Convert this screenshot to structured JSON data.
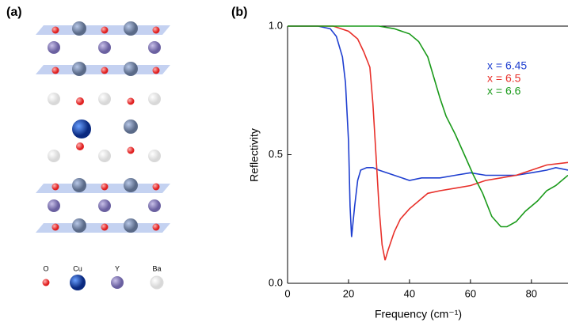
{
  "figure": {
    "panel_labels": [
      "(a)",
      "(b)"
    ],
    "atom_legend": [
      "O",
      "Cu",
      "Y",
      "Ba"
    ]
  },
  "chart_data": {
    "type": "line",
    "xlabel": "Frequency (cm⁻¹)",
    "ylabel": "Reflectivity",
    "xlim": [
      0,
      92
    ],
    "ylim": [
      0,
      1
    ],
    "xticks": [
      0,
      20,
      40,
      60,
      80
    ],
    "yticks": [
      {
        "value": 0,
        "label": "0.0"
      },
      {
        "value": 0.5,
        "label": "0.5"
      },
      {
        "value": 1,
        "label": "1.0"
      }
    ],
    "series": [
      {
        "name": "x = 6.45",
        "color": "#1f3fd0",
        "x": [
          0,
          10,
          14,
          16,
          18,
          19,
          20,
          20.5,
          21,
          22,
          23,
          24,
          26,
          28,
          30,
          35,
          40,
          44,
          50,
          55,
          60,
          65,
          70,
          75,
          80,
          85,
          88,
          92
        ],
        "values": [
          1,
          1,
          0.99,
          0.96,
          0.88,
          0.78,
          0.55,
          0.3,
          0.18,
          0.3,
          0.4,
          0.44,
          0.45,
          0.45,
          0.44,
          0.42,
          0.4,
          0.41,
          0.41,
          0.42,
          0.43,
          0.42,
          0.42,
          0.42,
          0.43,
          0.44,
          0.45,
          0.44
        ]
      },
      {
        "name": "x = 6.5",
        "color": "#e8302a",
        "x": [
          0,
          15,
          20,
          23,
          25,
          27,
          28,
          29,
          30,
          31,
          32,
          33,
          35,
          37,
          40,
          43,
          46,
          50,
          55,
          60,
          65,
          70,
          75,
          80,
          85,
          92
        ],
        "values": [
          1,
          1,
          0.98,
          0.95,
          0.9,
          0.84,
          0.7,
          0.5,
          0.3,
          0.15,
          0.09,
          0.13,
          0.2,
          0.25,
          0.29,
          0.32,
          0.35,
          0.36,
          0.37,
          0.38,
          0.4,
          0.41,
          0.42,
          0.44,
          0.46,
          0.47
        ]
      },
      {
        "name": "x = 6.6",
        "color": "#1a9a1a",
        "x": [
          0,
          30,
          35,
          40,
          43,
          46,
          48,
          50,
          52,
          55,
          58,
          61,
          64,
          67,
          70,
          72,
          75,
          78,
          82,
          85,
          88,
          92
        ],
        "values": [
          1,
          1,
          0.99,
          0.97,
          0.94,
          0.88,
          0.8,
          0.72,
          0.65,
          0.58,
          0.5,
          0.42,
          0.35,
          0.26,
          0.22,
          0.22,
          0.24,
          0.28,
          0.32,
          0.36,
          0.38,
          0.42
        ]
      }
    ]
  }
}
